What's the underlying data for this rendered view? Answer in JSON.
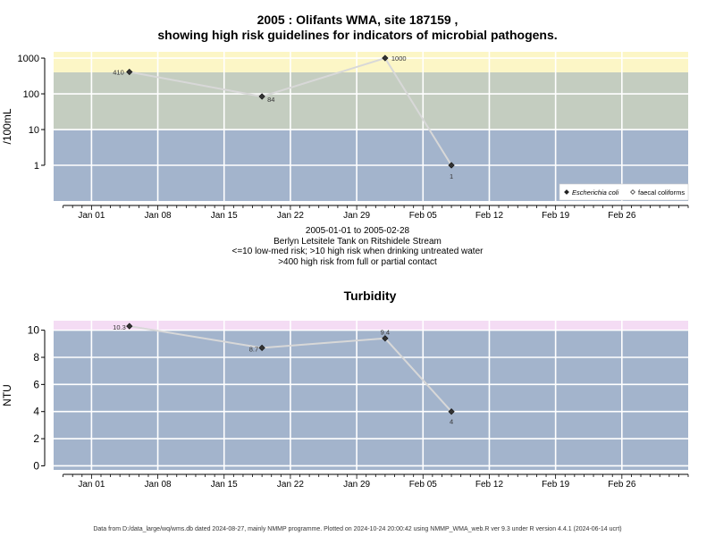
{
  "chart_title_line1": "2005 : Olifants WMA, site 187159 ,",
  "chart_title_line2": "showing high risk guidelines for indicators of microbial pathogens.",
  "subtitle": {
    "date_range": "2005-01-01 to 2005-02-28",
    "location": "Berlyn Letsitele Tank on Ritshidele Stream",
    "risk_note1": "<=10 low-med risk; >10 high risk when drinking untreated water",
    "risk_note2": ">400 high risk from full or partial contact"
  },
  "footer": "Data from D:/data_large/wq/wms.db dated 2024-08-27, mainly NMMP programme. Plotted on 2024-10-24 20:00:42 using NMMP_WMA_web.R ver 9.3 under R version 4.4.1 (2024-06-14 ucrt)",
  "colors": {
    "band_low": "#a3b4cc",
    "band_mid": "#c4cdc0",
    "band_high": "#fcf6c6",
    "band_pink": "#f4dcf4",
    "line": "#d8d8d8",
    "point": "#333333",
    "grid": "#ffffff"
  },
  "chart_data": [
    {
      "type": "line",
      "title": "",
      "ylabel": "/100mL",
      "y_scale": "log",
      "ylim": [
        0.1,
        1500
      ],
      "y_ticks": [
        1,
        10,
        100,
        1000
      ],
      "y_tick_labels": [
        "1",
        "10",
        "100",
        "1000"
      ],
      "x_tick_labels": [
        "Jan 01",
        "Jan 08",
        "Jan 15",
        "Jan 22",
        "Jan 29",
        "Feb 05",
        "Feb 12",
        "Feb 19",
        "Feb 26"
      ],
      "bands": [
        {
          "from": 0.1,
          "to": 10,
          "color": "band_low"
        },
        {
          "from": 10,
          "to": 400,
          "color": "band_mid"
        },
        {
          "from": 400,
          "to": 1500,
          "color": "band_high"
        }
      ],
      "legend_position": "bottom-right",
      "legend": [
        {
          "label": "Escherichia coli",
          "marker": "filled-diamond",
          "italic": true
        },
        {
          "label": "faecal coliforms",
          "marker": "open-diamond",
          "italic": false
        }
      ],
      "series": [
        {
          "name": "Escherichia coli",
          "x": [
            "2005-01-05",
            "2005-01-19",
            "2005-02-01",
            "2005-02-08"
          ],
          "y": [
            410,
            84,
            1000,
            1
          ],
          "labels": [
            "410",
            "84",
            "1000",
            "1"
          ]
        }
      ]
    },
    {
      "type": "line",
      "title": "Turbidity",
      "ylabel": "NTU",
      "y_scale": "linear",
      "ylim": [
        -0.3,
        10.7
      ],
      "y_ticks": [
        0,
        2,
        4,
        6,
        8,
        10
      ],
      "y_tick_labels": [
        "0",
        "2",
        "4",
        "6",
        "8",
        "10"
      ],
      "x_tick_labels": [
        "Jan 01",
        "Jan 08",
        "Jan 15",
        "Jan 22",
        "Jan 29",
        "Feb 05",
        "Feb 12",
        "Feb 19",
        "Feb 26"
      ],
      "bands": [
        {
          "from": -0.3,
          "to": 10,
          "color": "band_low"
        },
        {
          "from": 10,
          "to": 10.7,
          "color": "band_pink"
        }
      ],
      "series": [
        {
          "x": [
            "2005-01-05",
            "2005-01-19",
            "2005-02-01",
            "2005-02-08"
          ],
          "y": [
            10.3,
            8.7,
            9.4,
            4
          ],
          "labels": [
            "10.3",
            "8.7",
            "9.4",
            "4"
          ]
        }
      ]
    }
  ]
}
